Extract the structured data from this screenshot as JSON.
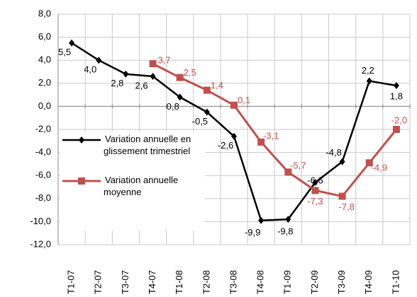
{
  "chart_data": {
    "type": "line",
    "categories": [
      "T1-07",
      "T2-07",
      "T3-07",
      "T4-07",
      "T1-08",
      "T2-08",
      "T3-08",
      "T4-08",
      "T1-09",
      "T2-09",
      "T3-09",
      "T4-09",
      "T1-10"
    ],
    "series": [
      {
        "name": "Variation annuelle en glissement trimestriel",
        "color": "#000000",
        "values": [
          5.5,
          4.0,
          2.8,
          2.6,
          0.8,
          -0.5,
          -2.6,
          -9.9,
          -9.8,
          -6.6,
          -4.8,
          2.2,
          1.8
        ],
        "value_labels": [
          "5,5",
          "4,0",
          "2,8",
          "2,6",
          "0,8",
          "-0,5",
          "-2,6",
          "-9,9",
          "-9,8",
          "-6,6",
          "-4,8",
          "2,2",
          "1,8"
        ]
      },
      {
        "name": "Variation annuelle moyenne",
        "color": "#c0504d",
        "values": [
          null,
          null,
          null,
          3.7,
          2.5,
          1.4,
          0.1,
          -3.1,
          -5.7,
          -7.3,
          -7.8,
          -4.9,
          -2.0
        ],
        "value_labels": [
          null,
          null,
          null,
          "3,7",
          "2,5",
          "1,4",
          "0,1",
          "-3,1",
          "-5,7",
          "-7,3",
          "-7,8",
          "-4,9",
          "-2,0"
        ]
      }
    ],
    "ylim": [
      -12,
      8
    ],
    "yticks": [
      {
        "value": -12,
        "label": "-12,0"
      },
      {
        "value": -10,
        "label": "-10,0"
      },
      {
        "value": -8,
        "label": "-8,0"
      },
      {
        "value": -6,
        "label": "-6,0"
      },
      {
        "value": -4,
        "label": "-4,0"
      },
      {
        "value": -2,
        "label": "-2,0"
      },
      {
        "value": 0,
        "label": "0,0"
      },
      {
        "value": 2,
        "label": "2,0"
      },
      {
        "value": 4,
        "label": "4,0"
      },
      {
        "value": 6,
        "label": "6,0"
      },
      {
        "value": 8,
        "label": "8,0"
      }
    ],
    "grid": true,
    "legend": "lower left"
  }
}
